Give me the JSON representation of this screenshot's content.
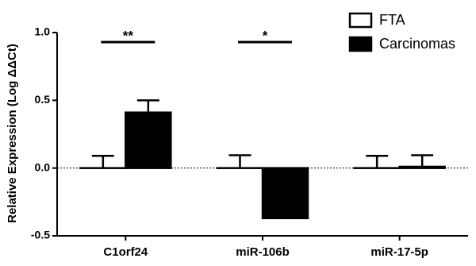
{
  "chart_data": {
    "type": "bar",
    "y_label": "Relative Expression (Log ΔΔCt)",
    "categories": [
      "C1orf24",
      "miR-106b",
      "miR-17-5p"
    ],
    "series": [
      {
        "name": "FTA",
        "color": "#ffffff",
        "values": [
          0,
          0,
          0
        ],
        "errors": [
          0.09,
          0.095,
          0.09
        ]
      },
      {
        "name": "Carcinomas",
        "color": "#000000",
        "values": [
          0.41,
          -0.37,
          0.01
        ],
        "errors": [
          0.09,
          0.08,
          0.085
        ]
      }
    ],
    "annotations": [
      {
        "text": "**"
      },
      {
        "text": "*"
      }
    ],
    "ylim": [
      -0.5,
      1.0
    ],
    "yticks": [
      -0.5,
      {
        "value": 0,
        "label": "0.0"
      },
      0.5,
      {
        "value": 1.0,
        "label": "1.0"
      }
    ],
    "legend": "top-right"
  }
}
